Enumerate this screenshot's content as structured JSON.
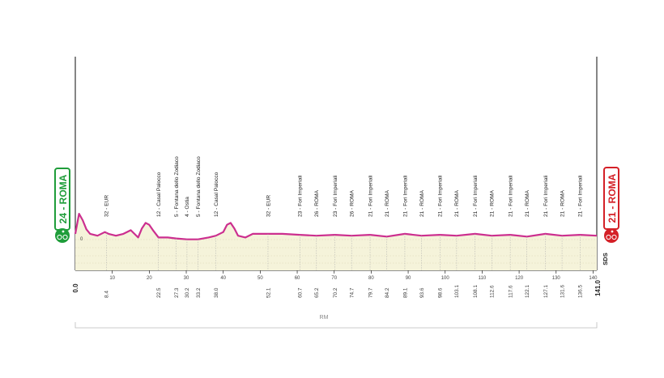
{
  "chart_data": {
    "type": "area",
    "title": "",
    "xlim": [
      0,
      141
    ],
    "x_ticks": [
      10,
      20,
      30,
      40,
      50,
      60,
      70,
      80,
      90,
      100,
      110,
      120,
      130,
      140
    ],
    "distance_start": "0.0",
    "distance_end": "141.0",
    "start": {
      "label": "24 - ROMA",
      "color": "#1f9d3a"
    },
    "finish": {
      "label": "21 - ROMA",
      "color": "#d42027"
    },
    "start_altitude_label": "0",
    "sds_label": "SDS",
    "region_label": "RM",
    "profile_color": "#cc2f8f",
    "fill_color": "#f5f3da",
    "profile_km": [
      0,
      1,
      2,
      3,
      4,
      6,
      8,
      9,
      11,
      13,
      15,
      17,
      18,
      19,
      20,
      21,
      22.5,
      25,
      27.3,
      30.2,
      33.2,
      36,
      38,
      40,
      41,
      42,
      43,
      44,
      46,
      48,
      52.1,
      56,
      60.7,
      65.2,
      70.2,
      74.7,
      79.7,
      84.2,
      89.1,
      93.6,
      98.6,
      103.1,
      108.1,
      112.6,
      117.6,
      122.1,
      127.1,
      131.6,
      136.5,
      141
    ],
    "profile_alt": [
      40,
      62,
      55,
      45,
      40,
      38,
      42,
      40,
      38,
      40,
      44,
      36,
      46,
      52,
      50,
      44,
      36,
      36,
      35,
      34,
      34,
      36,
      38,
      42,
      50,
      52,
      46,
      38,
      36,
      40,
      40,
      40,
      39,
      38,
      39,
      38,
      39,
      37,
      40,
      38,
      39,
      38,
      40,
      38,
      39,
      37,
      40,
      38,
      39,
      38
    ],
    "waypoints": [
      {
        "km": "8.4",
        "x": 8.4,
        "name": "32 - EUR"
      },
      {
        "km": "22.5",
        "x": 22.5,
        "name": "12 - Casal Palocco"
      },
      {
        "km": "27.3",
        "x": 27.3,
        "name": "5 - Fontana dello Zodiaco"
      },
      {
        "km": "30.2",
        "x": 30.2,
        "name": "4 - Ostia"
      },
      {
        "km": "33.2",
        "x": 33.2,
        "name": "5 - Fontana dello Zodiaco"
      },
      {
        "km": "38.0",
        "x": 38.0,
        "name": "12 - Casal Palocco"
      },
      {
        "km": "52.1",
        "x": 52.1,
        "name": "32 - EUR"
      },
      {
        "km": "60.7",
        "x": 60.7,
        "name": "23 - Fori Imperiali"
      },
      {
        "km": "65.2",
        "x": 65.2,
        "name": "26 - ROMA"
      },
      {
        "km": "70.2",
        "x": 70.2,
        "name": "23 - Fori Imperiali"
      },
      {
        "km": "74.7",
        "x": 74.7,
        "name": "26 - ROMA"
      },
      {
        "km": "79.7",
        "x": 79.7,
        "name": "21 - Fori Imperiali"
      },
      {
        "km": "84.2",
        "x": 84.2,
        "name": "21 - ROMA"
      },
      {
        "km": "89.1",
        "x": 89.1,
        "name": "21 - Fori Imperiali"
      },
      {
        "km": "93.6",
        "x": 93.6,
        "name": "21 - ROMA"
      },
      {
        "km": "98.6",
        "x": 98.6,
        "name": "21 - Fori Imperiali"
      },
      {
        "km": "103.1",
        "x": 103.1,
        "name": "21 - ROMA"
      },
      {
        "km": "108.1",
        "x": 108.1,
        "name": "21 - Fori Imperiali"
      },
      {
        "km": "112.6",
        "x": 112.6,
        "name": "21 - ROMA"
      },
      {
        "km": "117.6",
        "x": 117.6,
        "name": "21 - Fori Imperiali"
      },
      {
        "km": "122.1",
        "x": 122.1,
        "name": "21 - ROMA"
      },
      {
        "km": "127.1",
        "x": 127.1,
        "name": "21 - Fori Imperiali"
      },
      {
        "km": "131.6",
        "x": 131.6,
        "name": "21 - ROMA"
      },
      {
        "km": "136.5",
        "x": 136.5,
        "name": "21 - Fori Imperiali"
      }
    ]
  }
}
